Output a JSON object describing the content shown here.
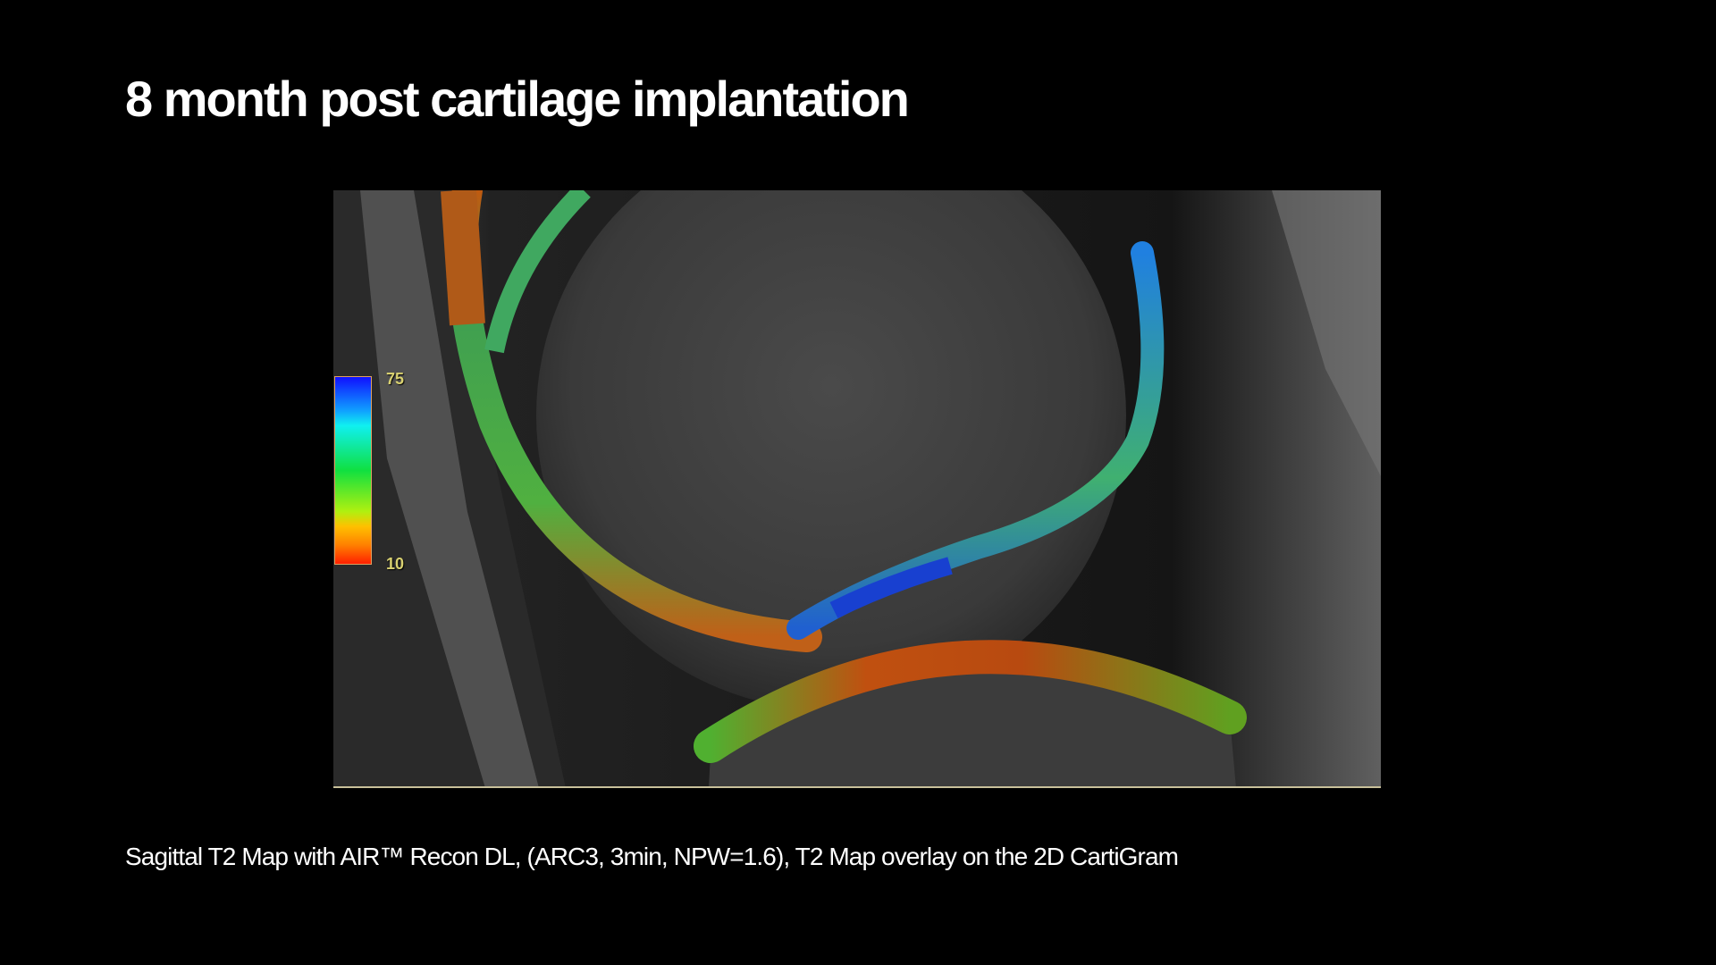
{
  "slide": {
    "title": "8 month post cartilage implantation",
    "caption": "Sagittal T2 Map with AIR™ Recon DL, (ARC3, 3min, NPW=1.6), T2 Map overlay on the 2D CartiGram"
  },
  "figure": {
    "colorbar": {
      "max_label": "75",
      "min_label": "10",
      "scale": [
        "#1010ff",
        "#10f0f0",
        "#10e040",
        "#b0f010",
        "#ffc000",
        "#ff2000"
      ]
    }
  }
}
